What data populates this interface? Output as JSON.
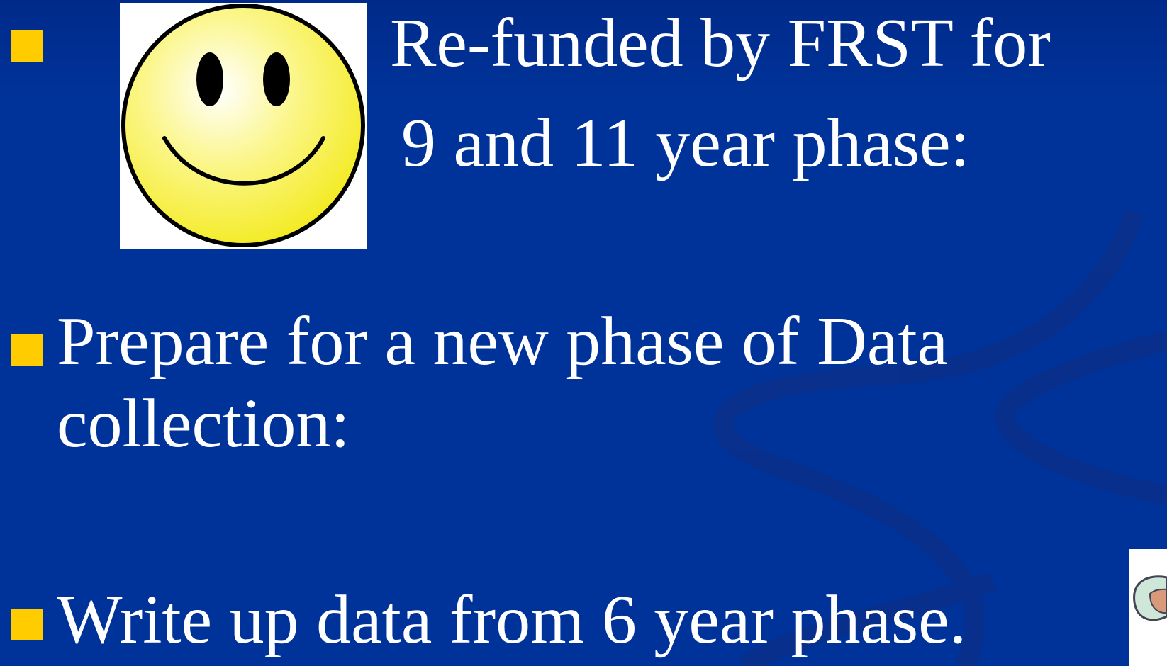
{
  "bullets": [
    {
      "lines": [
        "Re-funded by FRST for",
        "9 and 11 year  phase:"
      ]
    },
    {
      "lines": [
        "Prepare for a new phase of Data",
        "collection:"
      ]
    },
    {
      "lines": [
        "Write up data from 6 year phase."
      ]
    }
  ]
}
